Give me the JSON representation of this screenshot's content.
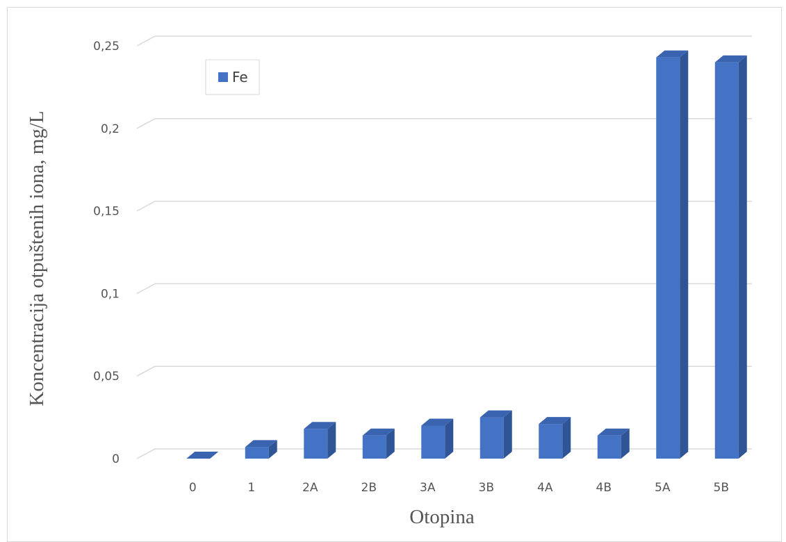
{
  "chart_data": {
    "type": "bar",
    "style": "3d-column",
    "categories": [
      "0",
      "1",
      "2A",
      "2B",
      "3A",
      "3B",
      "4A",
      "4B",
      "5A",
      "5B"
    ],
    "series": [
      {
        "name": "Fe",
        "values": [
          0.0,
          0.007,
          0.018,
          0.014,
          0.02,
          0.025,
          0.021,
          0.014,
          0.243,
          0.24
        ]
      }
    ],
    "yticks": [
      "0",
      "0,05",
      "0,1",
      "0,15",
      "0,2",
      "0,25"
    ],
    "ytick_values": [
      0,
      0.05,
      0.1,
      0.15,
      0.2,
      0.25
    ],
    "ylim": [
      0,
      0.25
    ],
    "xlabel": "Otopina",
    "ylabel": "Koncentracija otpuštenih iona, mg/L",
    "grid": true,
    "legend_position": "top-left",
    "colors": {
      "bar_front": "#4472c4",
      "bar_side": "#2f5597",
      "bar_top": "#3a64b0",
      "grid": "#d9d9d9",
      "text": "#555555"
    }
  }
}
